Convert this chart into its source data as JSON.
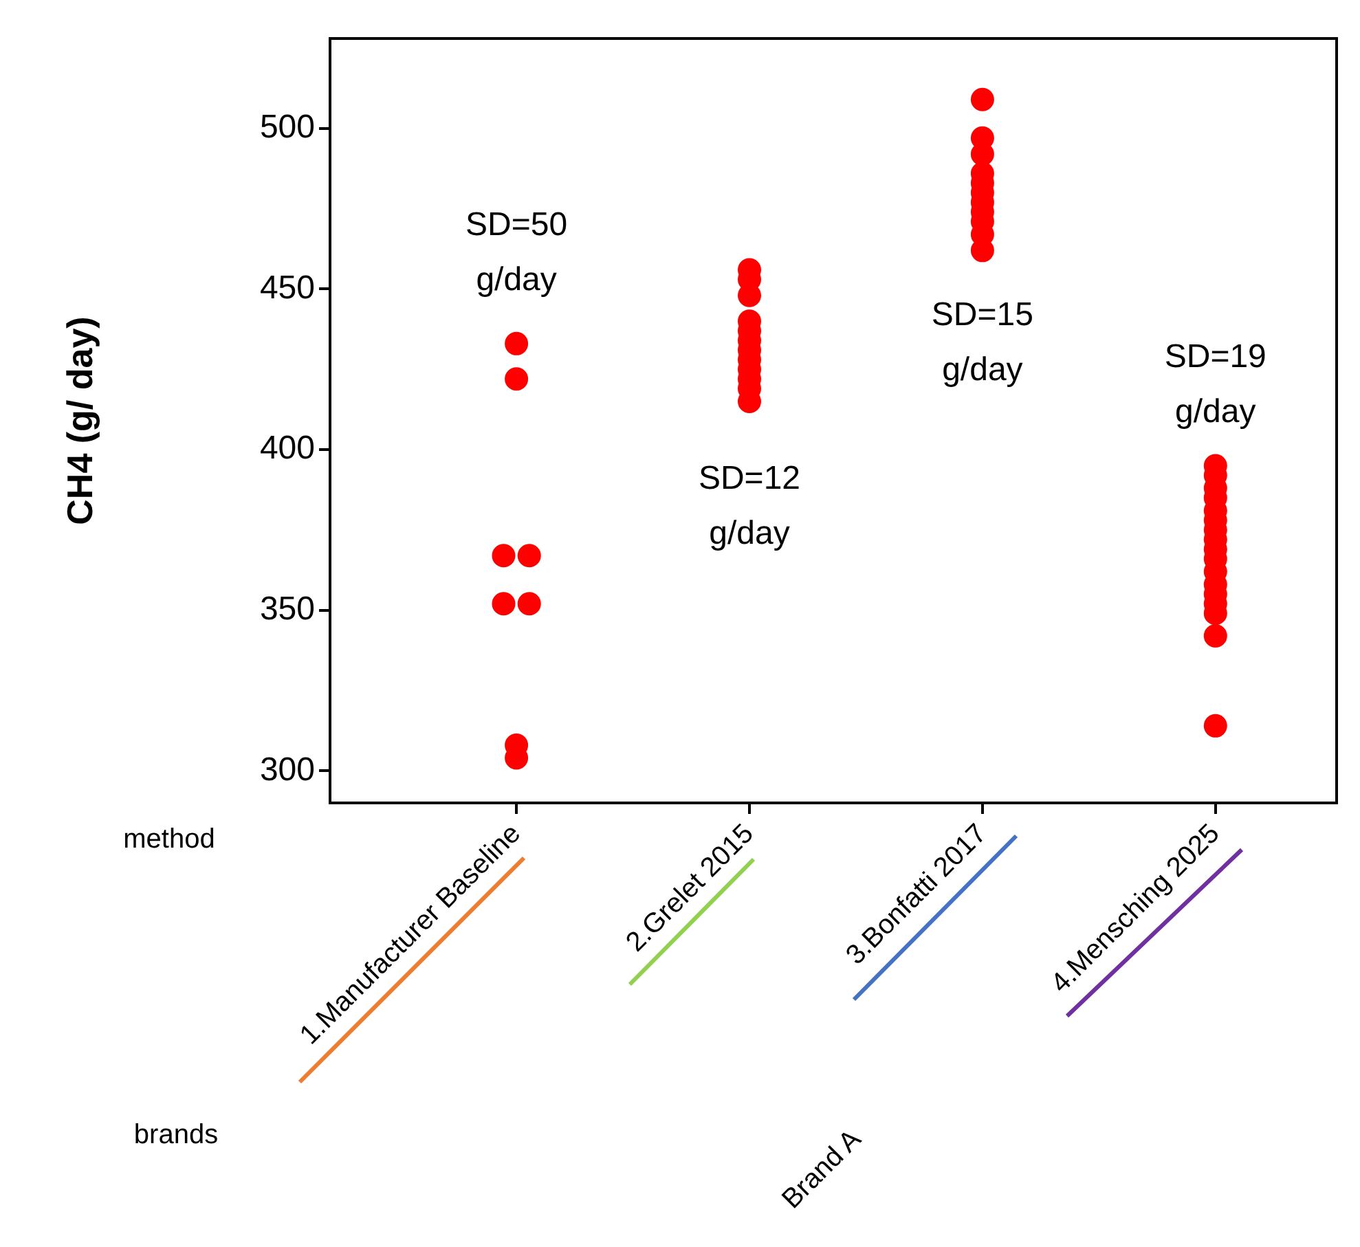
{
  "chart_data": {
    "type": "scatter",
    "ylabel": "CH4 (g/ day)",
    "categories": [
      "1.Manufacturer Baseline",
      "2.Grelet 2015",
      "3.Bonfatti 2017",
      "4.Mensching 2025"
    ],
    "series": [
      {
        "color": "#ff0000",
        "x": [
          "1.Manufacturer Baseline",
          "1.Manufacturer Baseline",
          "1.Manufacturer Baseline",
          "1.Manufacturer Baseline",
          "1.Manufacturer Baseline",
          "1.Manufacturer Baseline",
          "1.Manufacturer Baseline",
          "1.Manufacturer Baseline"
        ],
        "values": [
          433,
          422,
          367,
          367,
          352,
          352,
          308,
          304
        ]
      },
      {
        "color": "#ff0000",
        "x": [
          "2.Grelet 2015",
          "2.Grelet 2015",
          "2.Grelet 2015",
          "2.Grelet 2015",
          "2.Grelet 2015",
          "2.Grelet 2015",
          "2.Grelet 2015",
          "2.Grelet 2015",
          "2.Grelet 2015",
          "2.Grelet 2015",
          "2.Grelet 2015",
          "2.Grelet 2015"
        ],
        "values": [
          456,
          453,
          448,
          440,
          437,
          434,
          431,
          428,
          425,
          422,
          419,
          415
        ]
      },
      {
        "color": "#ff0000",
        "x": [
          "3.Bonfatti 2017",
          "3.Bonfatti 2017",
          "3.Bonfatti 2017",
          "3.Bonfatti 2017",
          "3.Bonfatti 2017",
          "3.Bonfatti 2017",
          "3.Bonfatti 2017",
          "3.Bonfatti 2017",
          "3.Bonfatti 2017",
          "3.Bonfatti 2017",
          "3.Bonfatti 2017"
        ],
        "values": [
          509,
          497,
          492,
          486,
          483,
          480,
          477,
          474,
          471,
          467,
          462
        ]
      },
      {
        "color": "#ff0000",
        "x": [
          "4.Mensching 2025",
          "4.Mensching 2025",
          "4.Mensching 2025",
          "4.Mensching 2025",
          "4.Mensching 2025",
          "4.Mensching 2025",
          "4.Mensching 2025",
          "4.Mensching 2025",
          "4.Mensching 2025",
          "4.Mensching 2025",
          "4.Mensching 2025",
          "4.Mensching 2025",
          "4.Mensching 2025",
          "4.Mensching 2025",
          "4.Mensching 2025",
          "4.Mensching 2025",
          "4.Mensching 2025"
        ],
        "values": [
          395,
          392,
          388,
          385,
          381,
          378,
          375,
          372,
          369,
          366,
          362,
          358,
          355,
          352,
          349,
          342,
          314
        ]
      }
    ],
    "marker": "circle",
    "grid": false,
    "legend": false,
    "ylim": [
      290,
      528
    ],
    "yticks": [
      300,
      350,
      400,
      450,
      500
    ],
    "annotations": [
      "SD=50\ng/day",
      "SD=12\ng/day",
      "SD=15\ng/day",
      "SD=19\ng/day",
      "method",
      "brands",
      "Brand A"
    ]
  }
}
